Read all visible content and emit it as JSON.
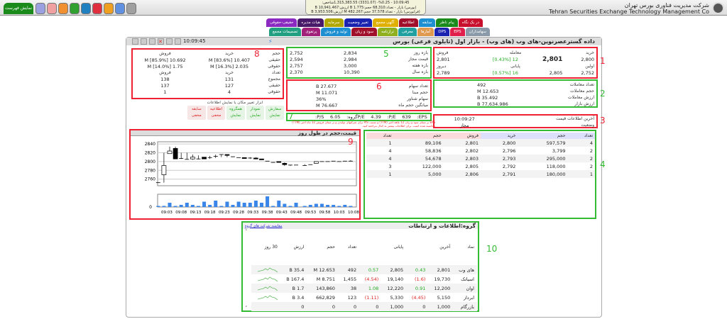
{
  "header": {
    "menu_label": "نمایش فهرست",
    "icons": [
      "globe-icon",
      "home-icon",
      "table-icon",
      "search-icon",
      "book-icon",
      "grid-icon",
      "chat-icon",
      "help-icon",
      "orange-badge-icon"
    ],
    "stats": [
      "10:09:45 - %0.25- (3331.07) 1,315,383.55شاخص:",
      "(بورس) بازار - تعداد:68,310 حجم:1.775 B ارزش:10,941.467 B",
      "(فرابورس) بازار - تعداد:37,578 حجم:482.267 M ارزش:3,953.506 B"
    ],
    "company_fa": "شرکت مدیریت فناوری بورس تهران",
    "company_en": "Tehran Securities Exchange Technology Management Co"
  },
  "tabs_row1": [
    {
      "label": "در یک نگاه",
      "color": "#c8102e"
    },
    {
      "label": "پیام ناظر",
      "color": "#1a8a1a"
    },
    {
      "label": "سابقه",
      "color": "#1e8fd0"
    },
    {
      "label": "اطلاعیه",
      "color": "#a0102a"
    },
    {
      "label": "آگهی مجمع",
      "color": "#e0b000"
    },
    {
      "label": "تغییر وضعیت",
      "color": "#1a22b0"
    },
    {
      "label": "سرمایه",
      "color": "#b0a800"
    },
    {
      "label": "هیات مدیره",
      "color": "#4a1a6a"
    },
    {
      "label": "حقیقی-حقوقی",
      "color": "#8a2ac0"
    }
  ],
  "tabs_row2": [
    {
      "label": "سهامداران",
      "color": "#8a9aa8"
    },
    {
      "label": "EPS",
      "color": "#e0204a"
    },
    {
      "label": "DPS",
      "color": "#1a22b0"
    },
    {
      "label": "آمارها",
      "color": "#e09a50"
    },
    {
      "label": "معرفی",
      "color": "#20a0a0"
    },
    {
      "label": "ترازنامه",
      "color": "#90b020"
    },
    {
      "label": "سود و زیان",
      "color": "#a0102a"
    },
    {
      "label": "تولید و فروش",
      "color": "#1e8fd0"
    },
    {
      "label": "پرتفوی",
      "color": "#a0207a"
    },
    {
      "label": "تصمیمات مجمع",
      "color": "#20a080"
    }
  ],
  "panel": {
    "title": "داده گسترعصرنوین-های وب (های وب) - بازار اول (تابلوی فرعی) بورس",
    "time": "10:09:45"
  },
  "box1": {
    "h_buy": "خرید",
    "h_trade": "معامله",
    "h_sell": "فروش",
    "buy": "2,800",
    "trade": "2,801",
    "trade_chg": "12",
    "trade_pct": "[0.43%]",
    "sell": "2,801",
    "h_first": "اولین",
    "h_close": "پایانی",
    "h_prev": "دیروز",
    "first": "2,752",
    "close": "2,805",
    "close_chg": "16",
    "close_pct": "[0.57%]",
    "prev": "2,789"
  },
  "box5": [
    {
      "label": "بازه روز",
      "a": "2,834",
      "b": "2,752"
    },
    {
      "label": "قیمت مجاز",
      "a": "2,984",
      "b": "2,594"
    },
    {
      "label": "بازه هفته",
      "a": "3,000",
      "b": "2,757"
    },
    {
      "label": "بازه سال",
      "a": "10,390",
      "b": "2,370"
    }
  ],
  "box2": [
    {
      "label": "تعداد معاملات",
      "value": "492"
    },
    {
      "label": "حجم معاملات",
      "value": "12.653 M"
    },
    {
      "label": "ارزش معاملات",
      "value": "35.492 B"
    },
    {
      "label": "ارزش بازار",
      "value": "77,634.986 B"
    }
  ],
  "box6": [
    {
      "label": "تعداد سهام",
      "value": "27.677 B"
    },
    {
      "label": "حجم مبنا",
      "value": "11.071 M"
    },
    {
      "label": "سهام شناور",
      "value": "36%"
    },
    {
      "label": "میانگین حجم ماه",
      "value": "76.667 M"
    }
  ],
  "box7": {
    "eps_label": "EPS:",
    "eps": "639",
    "pe_label": "P/E:",
    "pe": "4.39",
    "gpe_label": "P/Eگروه:",
    "gpe": "6.05",
    "ps_label": "P/S:"
  },
  "note": "EPS بر مبنای سود و زیان 12 ماهه اخیر (TTM) و نسبت P/S برای شرکتهای تولیدی و بر مبنای فروش 12 ماه اخیر (TTM) محاسبه شده است. برای اطلاعات بیشتر به کدال مراجعه کنید.",
  "box3": {
    "last_label": "آخرین اطلاعات قیمت",
    "last": "10:09:27",
    "status_label": "وضعیت",
    "status": "مجاز"
  },
  "box8": {
    "h_vol": "حجم",
    "h_buy": "خرید",
    "h_sell": "فروش",
    "h_count": "تعداد",
    "vol_rows": [
      {
        "label": "حقیقی",
        "buy": "10.407 M [83.6%]",
        "sell": "10.692 M [85.9%]"
      },
      {
        "label": "حقوقی",
        "buy": "2.035 M [16.3%]",
        "sell": "1.75 M [14.0%]"
      }
    ],
    "count_rows": [
      {
        "label": "مجموع",
        "buy": "131",
        "sell": "138"
      },
      {
        "label": "حقیقی",
        "buy": "127",
        "sell": "137"
      },
      {
        "label": "حقوقی",
        "buy": "4",
        "sell": "1"
      }
    ]
  },
  "tools": {
    "caption": "ابزار تغییر مکان یا نمایش اطلاعات",
    "items": [
      {
        "name": "سفارش",
        "state": "نمایش",
        "on": true
      },
      {
        "name": "نمودار",
        "state": "نمایش",
        "on": true
      },
      {
        "name": "همگروه",
        "state": "نمایش",
        "on": true
      },
      {
        "name": "اطلاعیه",
        "state": "مخفی",
        "on": false
      },
      {
        "name": "سابقه",
        "state": "مخفی",
        "on": false
      }
    ]
  },
  "orderbook": {
    "headers": [
      "تعداد",
      "حجم",
      "خرید",
      "فروش",
      "حجم",
      "تعداد"
    ],
    "rows": [
      [
        "4",
        "597,579",
        "2,800",
        "2,801",
        "89,106",
        "1"
      ],
      [
        "2",
        "3,799",
        "2,796",
        "2,802",
        "58,836",
        "4"
      ],
      [
        "2",
        "295,000",
        "2,793",
        "2,803",
        "54,678",
        "4"
      ],
      [
        "2",
        "118,000",
        "2,792",
        "2,805",
        "122,000",
        "3"
      ],
      [
        "1",
        "180,000",
        "2,791",
        "2,806",
        "5,000",
        "1"
      ]
    ]
  },
  "labels": [
    "1",
    "2",
    "3",
    "4",
    "5",
    "6",
    "7",
    "8",
    "9",
    "10"
  ],
  "chart_data": {
    "type": "candlestick",
    "title": "قیمت،حجم در طول روز",
    "ylim": [
      2745,
      2845
    ],
    "yticks": [
      2760,
      2780,
      2800,
      2820,
      2840
    ],
    "volume_ticks": [
      "0"
    ],
    "xticks": [
      "09:03",
      "09:08",
      "09:13",
      "09:18",
      "09:23",
      "09:28",
      "09:33",
      "09:38",
      "09:43",
      "09:48",
      "09:53",
      "09:58",
      "10:03",
      "10:08"
    ],
    "candles": [
      {
        "t": "09:00",
        "o": 2752,
        "h": 2752,
        "l": 2752,
        "c": 2752,
        "v": 1
      },
      {
        "t": "09:02",
        "o": 2770,
        "h": 2820,
        "l": 2752,
        "c": 2791,
        "v": 1
      },
      {
        "t": "09:04",
        "o": 2818,
        "h": 2834,
        "l": 2818,
        "c": 2824,
        "v": 4
      },
      {
        "t": "09:06",
        "o": 2830,
        "h": 2834,
        "l": 2806,
        "c": 2806,
        "v": 1
      },
      {
        "t": "09:08",
        "o": 2807,
        "h": 2820,
        "l": 2806,
        "c": 2806,
        "v": 2
      },
      {
        "t": "09:10",
        "o": 2805,
        "h": 2820,
        "l": 2805,
        "c": 2805,
        "v": 4
      },
      {
        "t": "09:12",
        "o": 2806,
        "h": 2816,
        "l": 2804,
        "c": 2810,
        "v": 2
      },
      {
        "t": "09:14",
        "o": 2806,
        "h": 2814,
        "l": 2805,
        "c": 2806,
        "v": 1
      },
      {
        "t": "09:16",
        "o": 2810,
        "h": 2810,
        "l": 2806,
        "c": 2806,
        "v": 5
      },
      {
        "t": "09:18",
        "o": 2809,
        "h": 2813,
        "l": 2806,
        "c": 2809,
        "v": 2
      },
      {
        "t": "09:20",
        "o": 2812,
        "h": 2816,
        "l": 2808,
        "c": 2812,
        "v": 6
      },
      {
        "t": "09:22",
        "o": 2816,
        "h": 2816,
        "l": 2810,
        "c": 2816,
        "v": 1
      },
      {
        "t": "09:24",
        "o": 2816,
        "h": 2816,
        "l": 2810,
        "c": 2814,
        "v": 5
      },
      {
        "t": "09:26",
        "o": 2811,
        "h": 2811,
        "l": 2810,
        "c": 2810,
        "v": 2
      },
      {
        "t": "09:28",
        "o": 2809,
        "h": 2809,
        "l": 2809,
        "c": 2809,
        "v": 5
      },
      {
        "t": "09:30",
        "o": 2809,
        "h": 2809,
        "l": 2807,
        "c": 2807,
        "v": 4
      },
      {
        "t": "09:32",
        "o": 2808,
        "h": 2810,
        "l": 2806,
        "c": 2808,
        "v": 4
      },
      {
        "t": "09:34",
        "o": 2808,
        "h": 2810,
        "l": 2805,
        "c": 2806,
        "v": 6
      },
      {
        "t": "09:36",
        "o": 2806,
        "h": 2806,
        "l": 2804,
        "c": 2804,
        "v": 4
      },
      {
        "t": "09:38",
        "o": 2801,
        "h": 2801,
        "l": 2801,
        "c": 2801,
        "v": 10
      },
      {
        "t": "09:40",
        "o": 2798,
        "h": 2798,
        "l": 2798,
        "c": 2798,
        "v": 1
      },
      {
        "t": "09:42",
        "o": 2800,
        "h": 2800,
        "l": 2798,
        "c": 2798,
        "v": 6
      },
      {
        "t": "09:44",
        "o": 2796,
        "h": 2798,
        "l": 2790,
        "c": 2793,
        "v": 3
      },
      {
        "t": "09:46",
        "o": 2792,
        "h": 2792,
        "l": 2790,
        "c": 2792,
        "v": 1
      },
      {
        "t": "09:48",
        "o": 2792,
        "h": 2792,
        "l": 2792,
        "c": 2792,
        "v": 4
      },
      {
        "t": "09:51",
        "o": 2791,
        "h": 2794,
        "l": 2791,
        "c": 2791,
        "v": 1
      },
      {
        "t": "09:53",
        "o": 2793,
        "h": 2793,
        "l": 2793,
        "c": 2793,
        "v": 2
      },
      {
        "t": "09:55",
        "o": 2796,
        "h": 2800,
        "l": 2796,
        "c": 2800,
        "v": 3
      },
      {
        "t": "09:57",
        "o": 2800,
        "h": 2800,
        "l": 2800,
        "c": 2800,
        "v": 3
      },
      {
        "t": "09:59",
        "o": 2800,
        "h": 2800,
        "l": 2800,
        "c": 2800,
        "v": 2
      },
      {
        "t": "10:01",
        "o": 2801,
        "h": 2801,
        "l": 2801,
        "c": 2801,
        "v": 2
      },
      {
        "t": "10:03",
        "o": 2800,
        "h": 2800,
        "l": 2800,
        "c": 2800,
        "v": 1
      },
      {
        "t": "10:05",
        "o": 2801,
        "h": 2801,
        "l": 2801,
        "c": 2801,
        "v": 2
      },
      {
        "t": "10:07",
        "o": 2801,
        "h": 2803,
        "l": 2801,
        "c": 2801,
        "v": 1
      }
    ],
    "up_color": "#ffffff",
    "down_color": "#000000",
    "volume_color": "#3a86e8"
  },
  "group": {
    "title": "گروه:اطلاعات و ارتباطات",
    "compare_link": "مقایسه شرکت های گروه",
    "headers": [
      "نماد",
      "آخرین",
      "",
      "پایانی",
      "",
      "تعداد",
      "حجم",
      "ارزش",
      "30 روز"
    ],
    "rows": [
      [
        "های وب",
        "2,801",
        "0.43",
        "2,805",
        "0.57",
        "492",
        "12.653 M",
        "35.4 B"
      ],
      [
        "اسیاتک",
        "19,730",
        "(1.6)",
        "19,140",
        "(4.54)",
        "1,455",
        "8.751 M",
        "167.4 B"
      ],
      [
        "اوان",
        "12,200",
        "0.91",
        "12,220",
        "1.08",
        "38",
        "143,860",
        "1.7 B"
      ],
      [
        "ابرداز",
        "5,150",
        "(4.45)",
        "5,330",
        "(1.11)",
        "123",
        "662,829",
        "3.4 B"
      ],
      [
        "بازرگام",
        "1,000",
        "0",
        "1,000",
        "0",
        "0",
        "0",
        "0"
      ]
    ]
  }
}
